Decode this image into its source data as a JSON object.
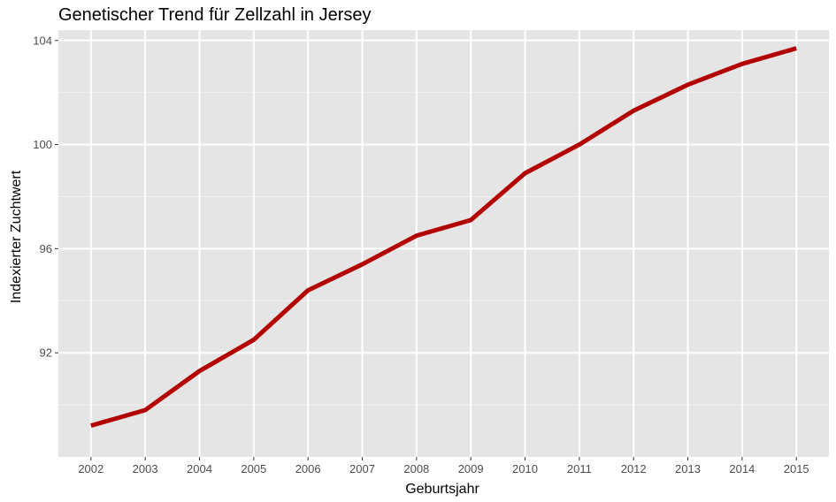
{
  "chart_data": {
    "type": "line",
    "title": "Genetischer Trend für Zellzahl in Jersey",
    "xlabel": "Geburtsjahr",
    "ylabel": "Indexierter Zuchtwert",
    "x": [
      2002,
      2003,
      2004,
      2005,
      2006,
      2007,
      2008,
      2009,
      2010,
      2011,
      2012,
      2013,
      2014,
      2015
    ],
    "series": [
      {
        "values": [
          89.2,
          89.8,
          91.3,
          92.5,
          94.4,
          95.4,
          96.5,
          97.1,
          98.9,
          100.0,
          101.3,
          102.3,
          103.1,
          103.7
        ]
      }
    ],
    "yticks": [
      92,
      96,
      100,
      104
    ],
    "ylim": [
      88.0,
      104.4
    ],
    "xlim": [
      2001.4,
      2015.6
    ],
    "grid": true,
    "colors": {
      "panel_background": "#e5e5e5",
      "grid_major": "#ffffff",
      "line": "#b30000",
      "tick_label": "#4d4d4d",
      "tick_mark": "#333333"
    }
  }
}
